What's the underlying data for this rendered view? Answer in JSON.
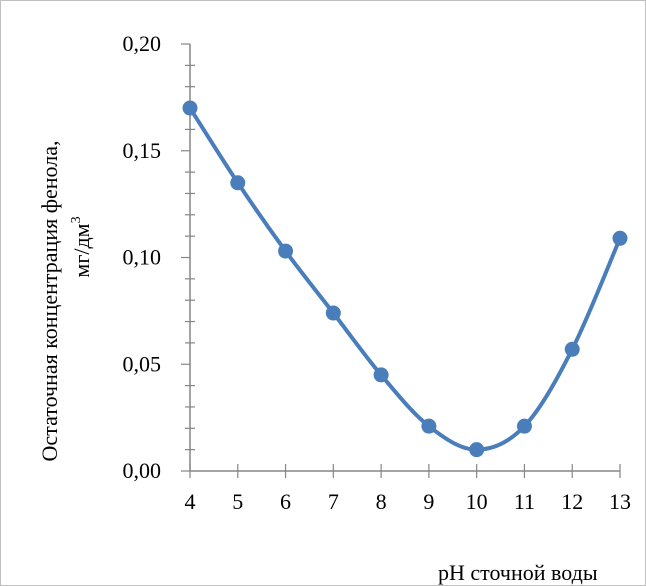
{
  "chart_data": {
    "type": "line",
    "x": [
      4,
      5,
      6,
      7,
      8,
      9,
      10,
      11,
      12,
      13
    ],
    "series": [
      {
        "values": [
          0.17,
          0.135,
          0.103,
          0.074,
          0.045,
          0.021,
          0.01,
          0.021,
          0.057,
          0.109
        ]
      }
    ],
    "x_ticks": [
      "4",
      "5",
      "6",
      "7",
      "8",
      "9",
      "10",
      "11",
      "12",
      "13"
    ],
    "y_ticks": [
      "0,00",
      "0,05",
      "0,10",
      "0,15",
      "0,20"
    ],
    "xlim": [
      4,
      13
    ],
    "ylim": [
      0,
      0.2
    ],
    "xlabel": "pH сточной воды",
    "ylabel_line1": "Остаточная концентрация фенола,",
    "ylabel_line2": "мг/дм",
    "ylabel_superscript": "3",
    "grid": false,
    "legend": "none",
    "line_color": "#4a7ebb",
    "smooth": true
  }
}
